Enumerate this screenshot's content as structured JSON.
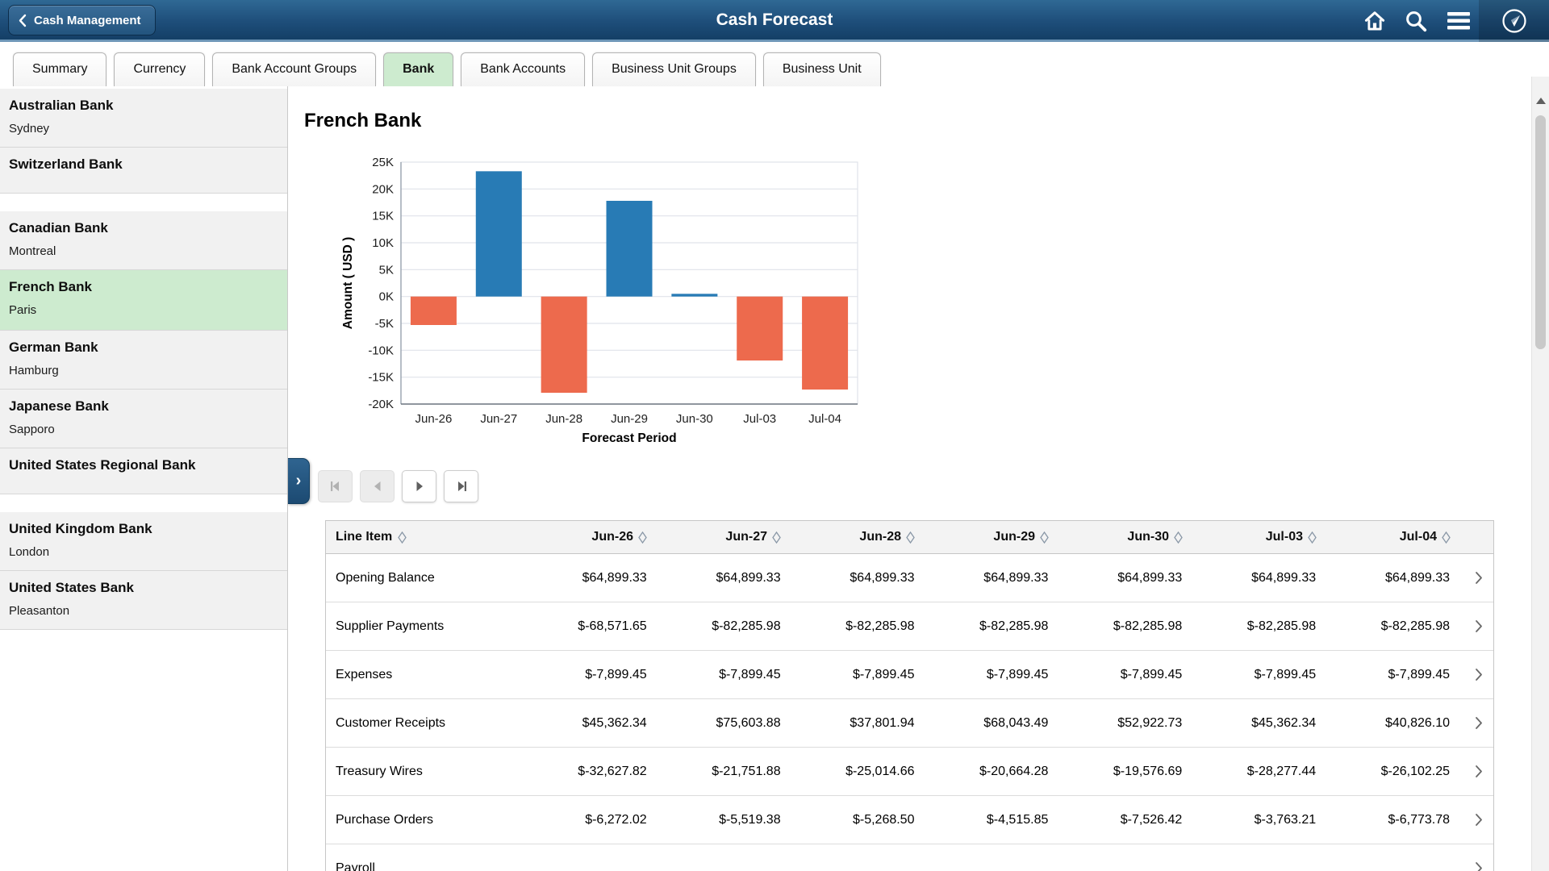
{
  "colors": {
    "header_blue": "#1e4e7a",
    "selection_green": "#cdebcf",
    "bar_positive": "#287bb5",
    "bar_negative": "#ed6a4d"
  },
  "header": {
    "back_label": "Cash Management",
    "title": "Cash Forecast",
    "icons": [
      "back-chevron-icon",
      "home-icon",
      "search-icon",
      "menu-icon",
      "navbar-compass-icon"
    ]
  },
  "tabs": [
    {
      "label": "Summary",
      "selected": false
    },
    {
      "label": "Currency",
      "selected": false
    },
    {
      "label": "Bank Account Groups",
      "selected": false
    },
    {
      "label": "Bank",
      "selected": true
    },
    {
      "label": "Bank Accounts",
      "selected": false
    },
    {
      "label": "Business Unit Groups",
      "selected": false
    },
    {
      "label": "Business Unit",
      "selected": false
    }
  ],
  "sidebar": {
    "items": [
      {
        "name": "Australian Bank",
        "city": "Sydney",
        "selected": false,
        "gap_after": false
      },
      {
        "name": "Switzerland Bank",
        "city": "",
        "selected": false,
        "gap_after": true
      },
      {
        "name": "Canadian Bank",
        "city": "Montreal",
        "selected": false,
        "gap_after": false
      },
      {
        "name": "French Bank",
        "city": "Paris",
        "selected": true,
        "gap_after": false
      },
      {
        "name": "German Bank",
        "city": "Hamburg",
        "selected": false,
        "gap_after": false
      },
      {
        "name": "Japanese Bank",
        "city": "Sapporo",
        "selected": false,
        "gap_after": false
      },
      {
        "name": "United States Regional Bank",
        "city": "",
        "selected": false,
        "gap_after": true
      },
      {
        "name": "United Kingdom Bank",
        "city": "London",
        "selected": false,
        "gap_after": false
      },
      {
        "name": "United States Bank",
        "city": "Pleasanton",
        "selected": false,
        "gap_after": false
      }
    ]
  },
  "content": {
    "title": "French Bank",
    "chart_data": {
      "type": "bar",
      "categories": [
        "Jun-26",
        "Jun-27",
        "Jun-28",
        "Jun-29",
        "Jun-30",
        "Jul-03",
        "Jul-04"
      ],
      "values": [
        -5300,
        23300,
        -17900,
        17800,
        500,
        -11900,
        -17300
      ],
      "title": "",
      "xlabel": "Forecast Period",
      "ylabel": "Amount ( USD )",
      "ylim": [
        -20000,
        25000
      ],
      "ytick_step": 5000,
      "grid": true,
      "legend": "none",
      "positive_color": "#287bb5",
      "negative_color": "#ed6a4d"
    },
    "pagination": [
      {
        "icon": "first-page-icon",
        "enabled": false
      },
      {
        "icon": "previous-page-icon",
        "enabled": false
      },
      {
        "icon": "next-page-icon",
        "enabled": true
      },
      {
        "icon": "last-page-icon",
        "enabled": true
      }
    ]
  },
  "table": {
    "row_header": "Line Item",
    "columns": [
      "Jun-26",
      "Jun-27",
      "Jun-28",
      "Jun-29",
      "Jun-30",
      "Jul-03",
      "Jul-04"
    ],
    "rows": [
      {
        "label": "Opening Balance",
        "values": [
          "$64,899.33",
          "$64,899.33",
          "$64,899.33",
          "$64,899.33",
          "$64,899.33",
          "$64,899.33",
          "$64,899.33"
        ]
      },
      {
        "label": "Supplier Payments",
        "values": [
          "$-68,571.65",
          "$-82,285.98",
          "$-82,285.98",
          "$-82,285.98",
          "$-82,285.98",
          "$-82,285.98",
          "$-82,285.98"
        ]
      },
      {
        "label": "Expenses",
        "values": [
          "$-7,899.45",
          "$-7,899.45",
          "$-7,899.45",
          "$-7,899.45",
          "$-7,899.45",
          "$-7,899.45",
          "$-7,899.45"
        ]
      },
      {
        "label": "Customer Receipts",
        "values": [
          "$45,362.34",
          "$75,603.88",
          "$37,801.94",
          "$68,043.49",
          "$52,922.73",
          "$45,362.34",
          "$40,826.10"
        ]
      },
      {
        "label": "Treasury Wires",
        "values": [
          "$-32,627.82",
          "$-21,751.88",
          "$-25,014.66",
          "$-20,664.28",
          "$-19,576.69",
          "$-28,277.44",
          "$-26,102.25"
        ]
      },
      {
        "label": "Purchase Orders",
        "values": [
          "$-6,272.02",
          "$-5,519.38",
          "$-5,268.50",
          "$-4,515.85",
          "$-7,526.42",
          "$-3,763.21",
          "$-6,773.78"
        ]
      },
      {
        "label": "Payroll",
        "values": [
          "",
          "",
          "",
          "",
          "",
          "",
          ""
        ]
      }
    ]
  }
}
